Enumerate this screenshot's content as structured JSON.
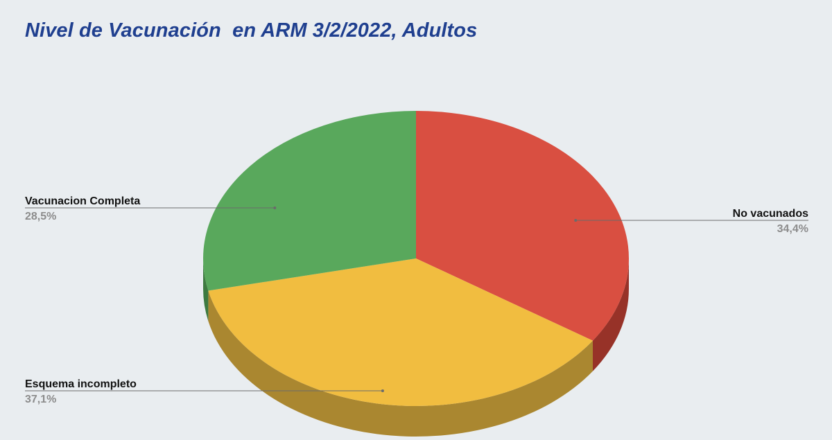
{
  "title": "Nivel de Vacunación  en ARM 3/2/2022, Adultos",
  "colors": {
    "background": "#e9edf0",
    "title": "#1f3f8f"
  },
  "chart_data": {
    "type": "pie",
    "style": "3d",
    "title": "Nivel de Vacunación  en ARM 3/2/2022, Adultos",
    "legend": "none",
    "slices": [
      {
        "label": "No vacunados",
        "value": 34.4,
        "value_label": "34,4%",
        "color": "#d94f41",
        "side_color": "#973228"
      },
      {
        "label": "Esquema incompleto",
        "value": 37.1,
        "value_label": "37,1%",
        "color": "#f1bd40",
        "side_color": "#aa8730"
      },
      {
        "label": "Vacunacion Completa",
        "value": 28.5,
        "value_label": "28,5%",
        "color": "#59a85c",
        "side_color": "#3d7a40"
      }
    ]
  }
}
